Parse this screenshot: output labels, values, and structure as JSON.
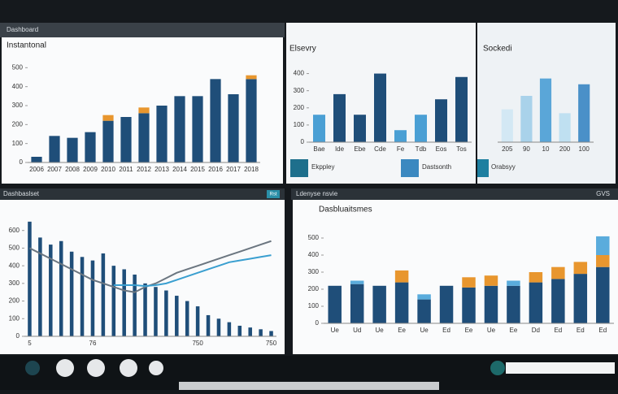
{
  "ui": {
    "headers": [
      "Dashboard",
      "Dashbaslset",
      "Ldenyse nsvie",
      "GVS"
    ],
    "tiles": [
      "Ekppley",
      "Dastsonth",
      "Orabsyy"
    ],
    "badge": "Rst"
  },
  "chart_data": [
    {
      "type": "bar",
      "title": "Instantonal",
      "stacked": true,
      "categories": [
        "2006",
        "2007",
        "2008",
        "2009",
        "2010",
        "2011",
        "2012",
        "2013",
        "2014",
        "2015",
        "2016",
        "2017",
        "2018"
      ],
      "series": [
        {
          "color": "#1f4e79",
          "values": [
            30,
            140,
            130,
            160,
            220,
            240,
            260,
            300,
            350,
            350,
            440,
            360,
            440
          ]
        },
        {
          "color": "#e8962e",
          "values": [
            0,
            0,
            0,
            0,
            30,
            0,
            30,
            0,
            0,
            0,
            0,
            0,
            20
          ]
        }
      ],
      "ylim": [
        0,
        600
      ],
      "yticks": [
        0,
        100,
        200,
        300,
        400,
        500
      ]
    },
    {
      "type": "bar",
      "title": "Elsevry",
      "categories": [
        "Bae",
        "Ide",
        "Ebe",
        "Cde",
        "Fe",
        "Tdb",
        "Eos",
        "Tos"
      ],
      "values": [
        160,
        280,
        160,
        400,
        70,
        160,
        250,
        380
      ],
      "colors": [
        "#4a9fd4",
        "#1f4e79",
        "#1f4e79",
        "#1f4e79",
        "#4a9fd4",
        "#4a9fd4",
        "#1f4e79",
        "#1f4e79"
      ],
      "ylim": [
        0,
        450
      ],
      "yticks": [
        0,
        100,
        200,
        300,
        400
      ]
    },
    {
      "type": "bar",
      "title": "Sockedi",
      "categories": [
        "205",
        "90",
        "10",
        "200",
        "100"
      ],
      "values": [
        170,
        240,
        330,
        150,
        300
      ],
      "colors": [
        "#d3e8f4",
        "#a9d2ea",
        "#5aa6d8",
        "#bfe0f1",
        "#4a90c8"
      ],
      "ylim": [
        0,
        400
      ]
    },
    {
      "type": "combo",
      "categories": [
        "5",
        null,
        null,
        null,
        null,
        null,
        "76",
        null,
        null,
        null,
        null,
        null,
        null,
        null,
        null,
        null,
        "750",
        null,
        null,
        null,
        null,
        null,
        null,
        "750"
      ],
      "series": [
        {
          "kind": "bar",
          "color": "#1f4e79",
          "values": [
            650,
            560,
            520,
            540,
            480,
            450,
            430,
            470,
            400,
            380,
            350,
            300,
            280,
            260,
            230,
            200,
            170,
            120,
            100,
            80,
            60,
            50,
            40,
            30
          ]
        },
        {
          "kind": "line",
          "color": "#6b7680",
          "values": [
            500,
            470,
            440,
            410,
            380,
            350,
            320,
            300,
            280,
            260,
            250,
            280,
            300,
            330,
            360,
            380,
            400,
            420,
            440,
            460,
            480,
            500,
            520,
            540
          ]
        },
        {
          "kind": "line",
          "color": "#3a9fd0",
          "values": [
            null,
            null,
            null,
            null,
            null,
            null,
            null,
            null,
            290,
            290,
            290,
            285,
            290,
            300,
            320,
            340,
            360,
            380,
            400,
            420,
            430,
            440,
            450,
            460
          ]
        }
      ],
      "ylim": [
        0,
        700
      ],
      "yticks": [
        0,
        100,
        200,
        300,
        400,
        500,
        600
      ]
    },
    {
      "type": "bar",
      "title": "Dasbluaitsmes",
      "stacked": true,
      "categories": [
        "Ue",
        "Ud",
        "Ue",
        "Ee",
        "Ue",
        "Ed",
        "Ee",
        "Ue",
        "Ee",
        "Dd",
        "Ed",
        "Ed",
        "Ed"
      ],
      "series": [
        {
          "color": "#1f4e79",
          "values": [
            220,
            230,
            220,
            240,
            140,
            220,
            210,
            220,
            220,
            240,
            260,
            290,
            330
          ]
        },
        {
          "color": "#e8962e",
          "values": [
            0,
            0,
            0,
            70,
            0,
            0,
            60,
            60,
            0,
            60,
            70,
            70,
            70
          ]
        },
        {
          "color": "#5aacdc",
          "values": [
            0,
            20,
            0,
            0,
            30,
            0,
            0,
            0,
            30,
            0,
            0,
            0,
            110
          ]
        }
      ],
      "ylim": [
        0,
        600
      ],
      "yticks": [
        0,
        100,
        200,
        300,
        400,
        500
      ]
    }
  ]
}
